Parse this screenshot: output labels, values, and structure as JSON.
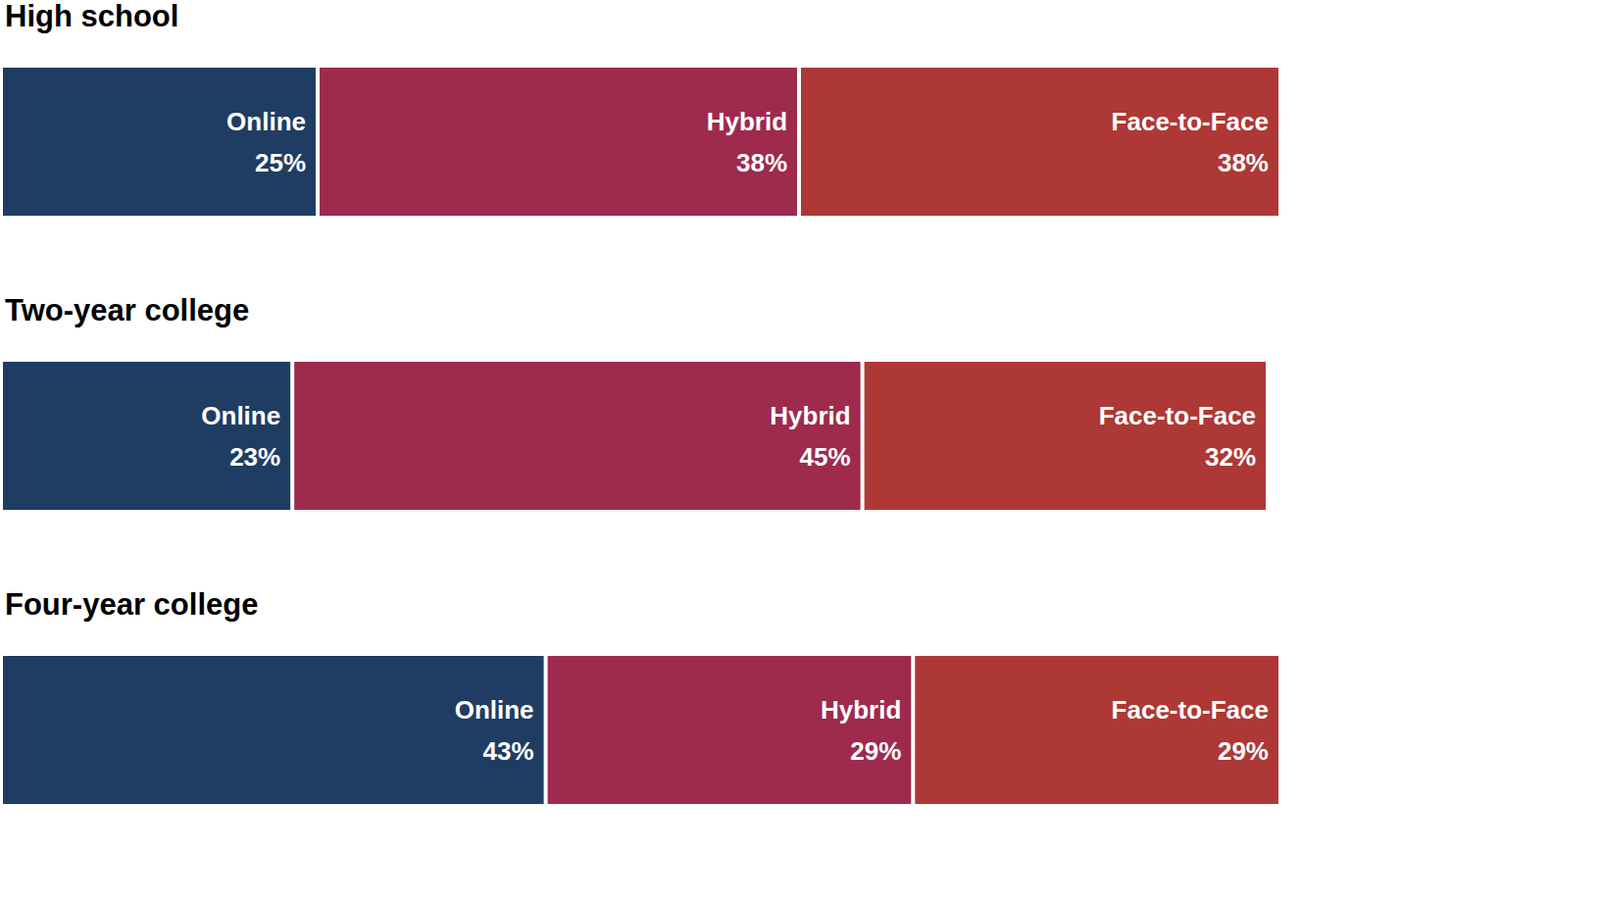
{
  "chart_data": {
    "type": "bar",
    "orientation": "horizontal",
    "stacked": true,
    "data_labels": true,
    "tick_labels": false,
    "grid": false,
    "categories": [
      "High school",
      "Two-year college",
      "Four-year college"
    ],
    "xlim": [
      0,
      101
    ],
    "series": [
      {
        "name": "Online",
        "color": "#1f3d63",
        "values": [
          25,
          23,
          43
        ],
        "value_labels": [
          "25%",
          "23%",
          "43%"
        ]
      },
      {
        "name": "Hybrid",
        "color": "#9e2a4e",
        "values": [
          38,
          45,
          29
        ],
        "value_labels": [
          "38%",
          "45%",
          "29%"
        ]
      },
      {
        "name": "Face-to-Face",
        "color": "#ae3835",
        "values": [
          38,
          32,
          29
        ],
        "value_labels": [
          "38%",
          "32%",
          "29%"
        ]
      }
    ]
  }
}
